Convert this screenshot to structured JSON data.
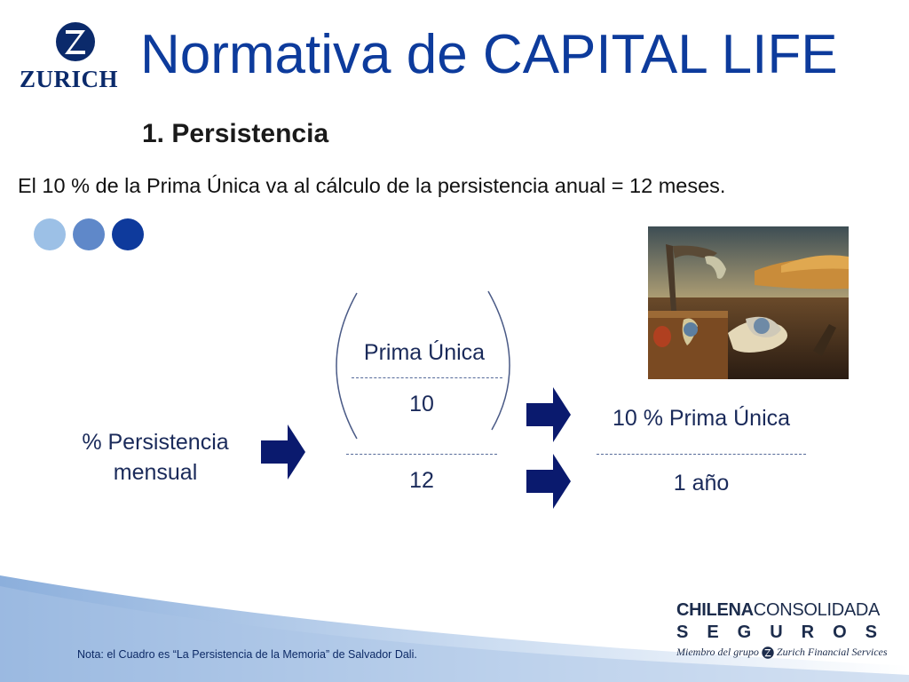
{
  "logo": {
    "wordmark": "ZURICH",
    "icon": "zurich-z-icon",
    "color": "#0b2a6b"
  },
  "title": "Normativa de CAPITAL LIFE",
  "subtitle": "1. Persistencia",
  "description": "El 10 % de la Prima Única va al cálculo de la persistencia anual = 12 meses.",
  "decor_dots": [
    "#9cc0e6",
    "#5f88c9",
    "#0e3a9c"
  ],
  "painting": {
    "icon": "persistence-of-memory-painting"
  },
  "diagram": {
    "left_label": "% Persistencia mensual",
    "numerator_label": "Prima Única",
    "numerator_value": "10",
    "denominator_value": "12",
    "result_numerator": "10 % Prima Única",
    "result_denominator": "1 año",
    "arrow_color": "#0a1a6e"
  },
  "brand": {
    "line1_bold": "CHILENA",
    "line1_regular": "CONSOLIDADA",
    "line2": "SEGUROS",
    "line3_prefix": "Miembro del grupo",
    "line3_suffix": "Zurich Financial Services"
  },
  "note": "Nota: el Cuadro es “La Persistencia de la Memoria” de Salvador Dali.",
  "colors": {
    "title": "#0d3b9c",
    "accent": "#0e3a9c"
  }
}
